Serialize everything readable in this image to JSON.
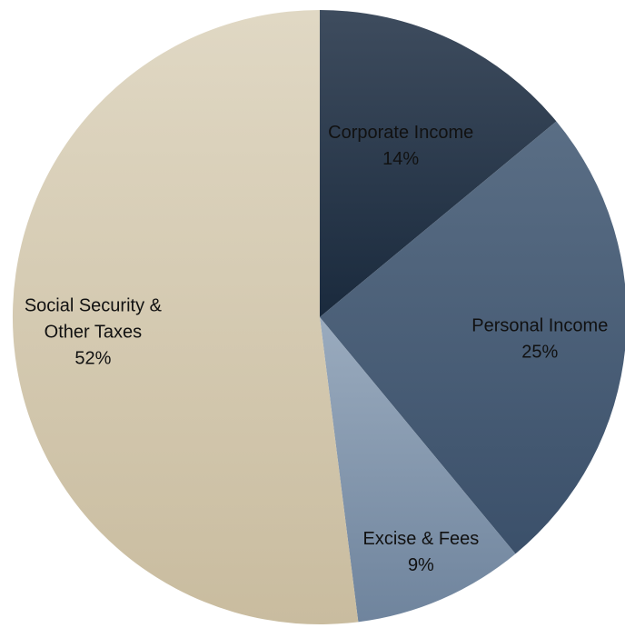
{
  "chart_data": {
    "type": "pie",
    "title": "",
    "start_angle_deg": 0,
    "direction": "clockwise",
    "slices": [
      {
        "name": "Corporate Income",
        "value": 14,
        "label_lines": [
          "Corporate Income",
          "14%"
        ],
        "color_light": "#3e4c5e",
        "color_dark": "#1a2a3d"
      },
      {
        "name": "Personal Income",
        "value": 25,
        "label_lines": [
          "Personal Income",
          "25%"
        ],
        "color_light": "#5a6e85",
        "color_dark": "#3b506a"
      },
      {
        "name": "Excise & Fees",
        "value": 9,
        "label_lines": [
          "Excise & Fees",
          "9%"
        ],
        "color_light": "#9aabbe",
        "color_dark": "#6f849d"
      },
      {
        "name": "Social Security & Other Taxes",
        "value": 52,
        "label_lines": [
          "Social Security &",
          "Other Taxes",
          "52%"
        ],
        "color_light": "#e0d8c4",
        "color_dark": "#c9bc9f"
      }
    ]
  }
}
